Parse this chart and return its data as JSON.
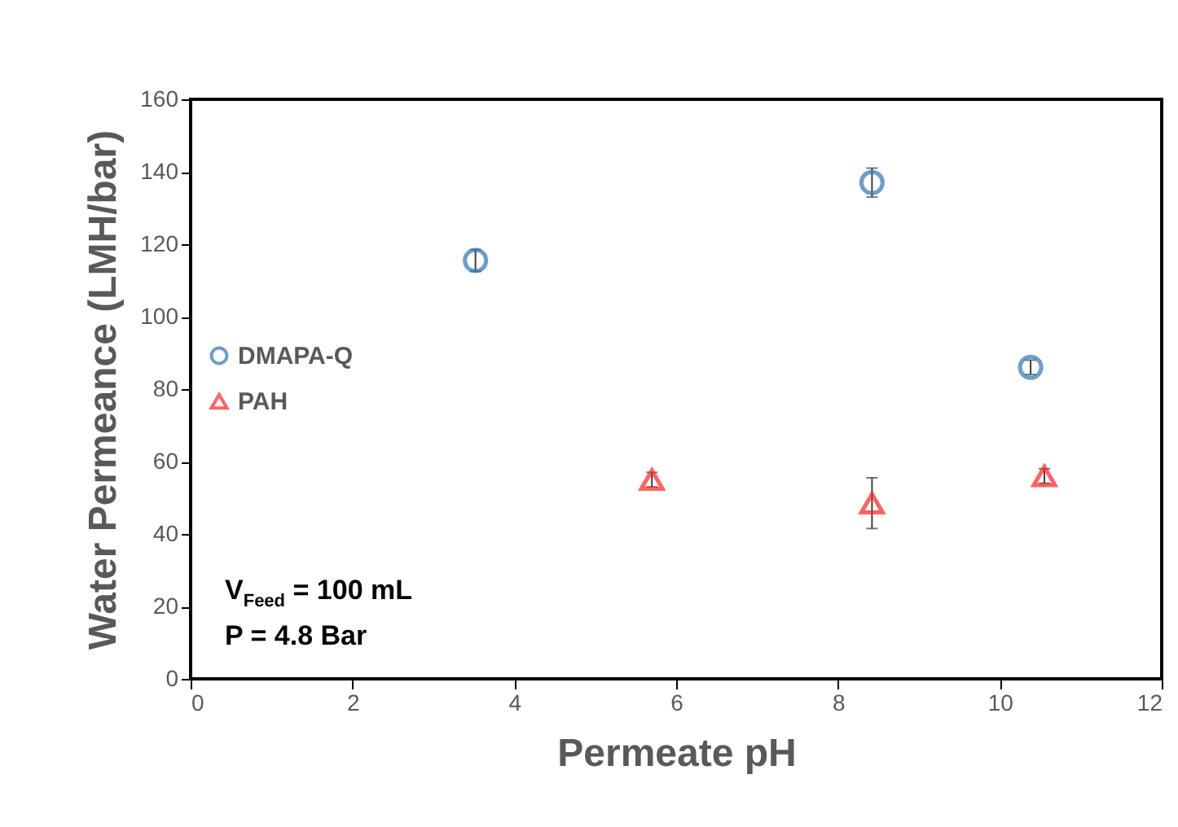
{
  "chart_data": {
    "type": "scatter",
    "xlabel": "Permeate pH",
    "ylabel": "Water Permeance (LMH/bar)",
    "xlim": [
      0,
      12
    ],
    "xticks": [
      0,
      2,
      4,
      6,
      8,
      10,
      12
    ],
    "ylim": [
      0,
      160
    ],
    "yticks": [
      0,
      20,
      40,
      60,
      80,
      100,
      120,
      140,
      160
    ],
    "grid": false,
    "legend": "left",
    "series": [
      {
        "name": "DMAPA-Q",
        "color": "#2e75b6",
        "marker": "circle",
        "x": [
          3.52,
          8.42,
          10.38
        ],
        "values": [
          115.5,
          137,
          86
        ],
        "errors": [
          3,
          4,
          2
        ]
      },
      {
        "name": "PAH",
        "color": "#ff2020",
        "marker": "triangle",
        "x": [
          5.7,
          8.42,
          10.55
        ],
        "values": [
          55,
          48.5,
          56
        ],
        "errors": [
          2,
          7,
          2
        ]
      }
    ],
    "annotations": [
      "V$_{Feed}$ = 100 mL",
      "P = 4.8 Bar"
    ]
  }
}
